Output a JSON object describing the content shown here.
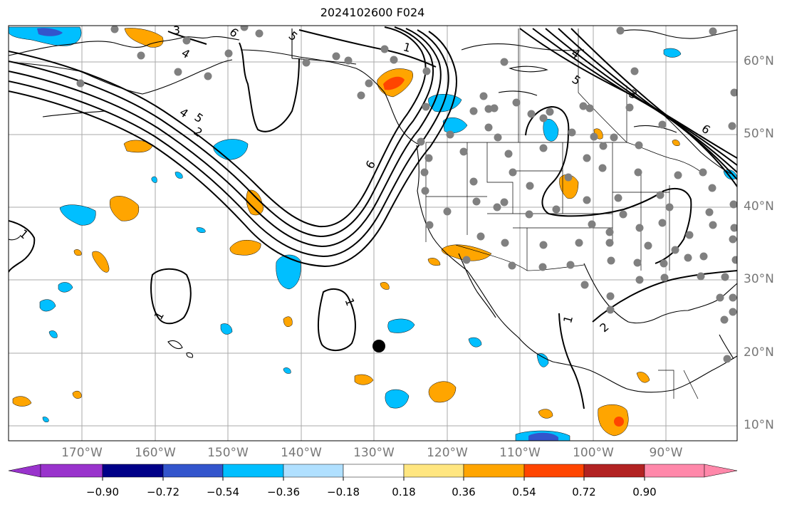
{
  "title": "2024102600 F024",
  "map": {
    "lon_labels": [
      "170°W",
      "160°W",
      "150°W",
      "140°W",
      "130°W",
      "120°W",
      "110°W",
      "100°W",
      "90°W"
    ],
    "lat_labels": [
      "60°N",
      "50°N",
      "40°N",
      "30°N",
      "20°N",
      "10°N"
    ],
    "contour_labels": [
      "1",
      "3",
      "4",
      "5",
      "2",
      "6"
    ],
    "grid": true,
    "land_color": "#ffffff",
    "ocean_color": "#ffffff"
  },
  "colorbar": {
    "ticks": [
      "−0.90",
      "−0.72",
      "−0.54",
      "−0.36",
      "−0.18",
      "0.18",
      "0.36",
      "0.54",
      "0.72",
      "0.90"
    ],
    "colors": [
      "#9933cc",
      "#000088",
      "#3355cc",
      "#00bfff",
      "#b0e0ff",
      "#ffffff",
      "#ffe680",
      "#ffa500",
      "#ff4500",
      "#b22222",
      "#ff88aa"
    ],
    "extend": "both"
  }
}
